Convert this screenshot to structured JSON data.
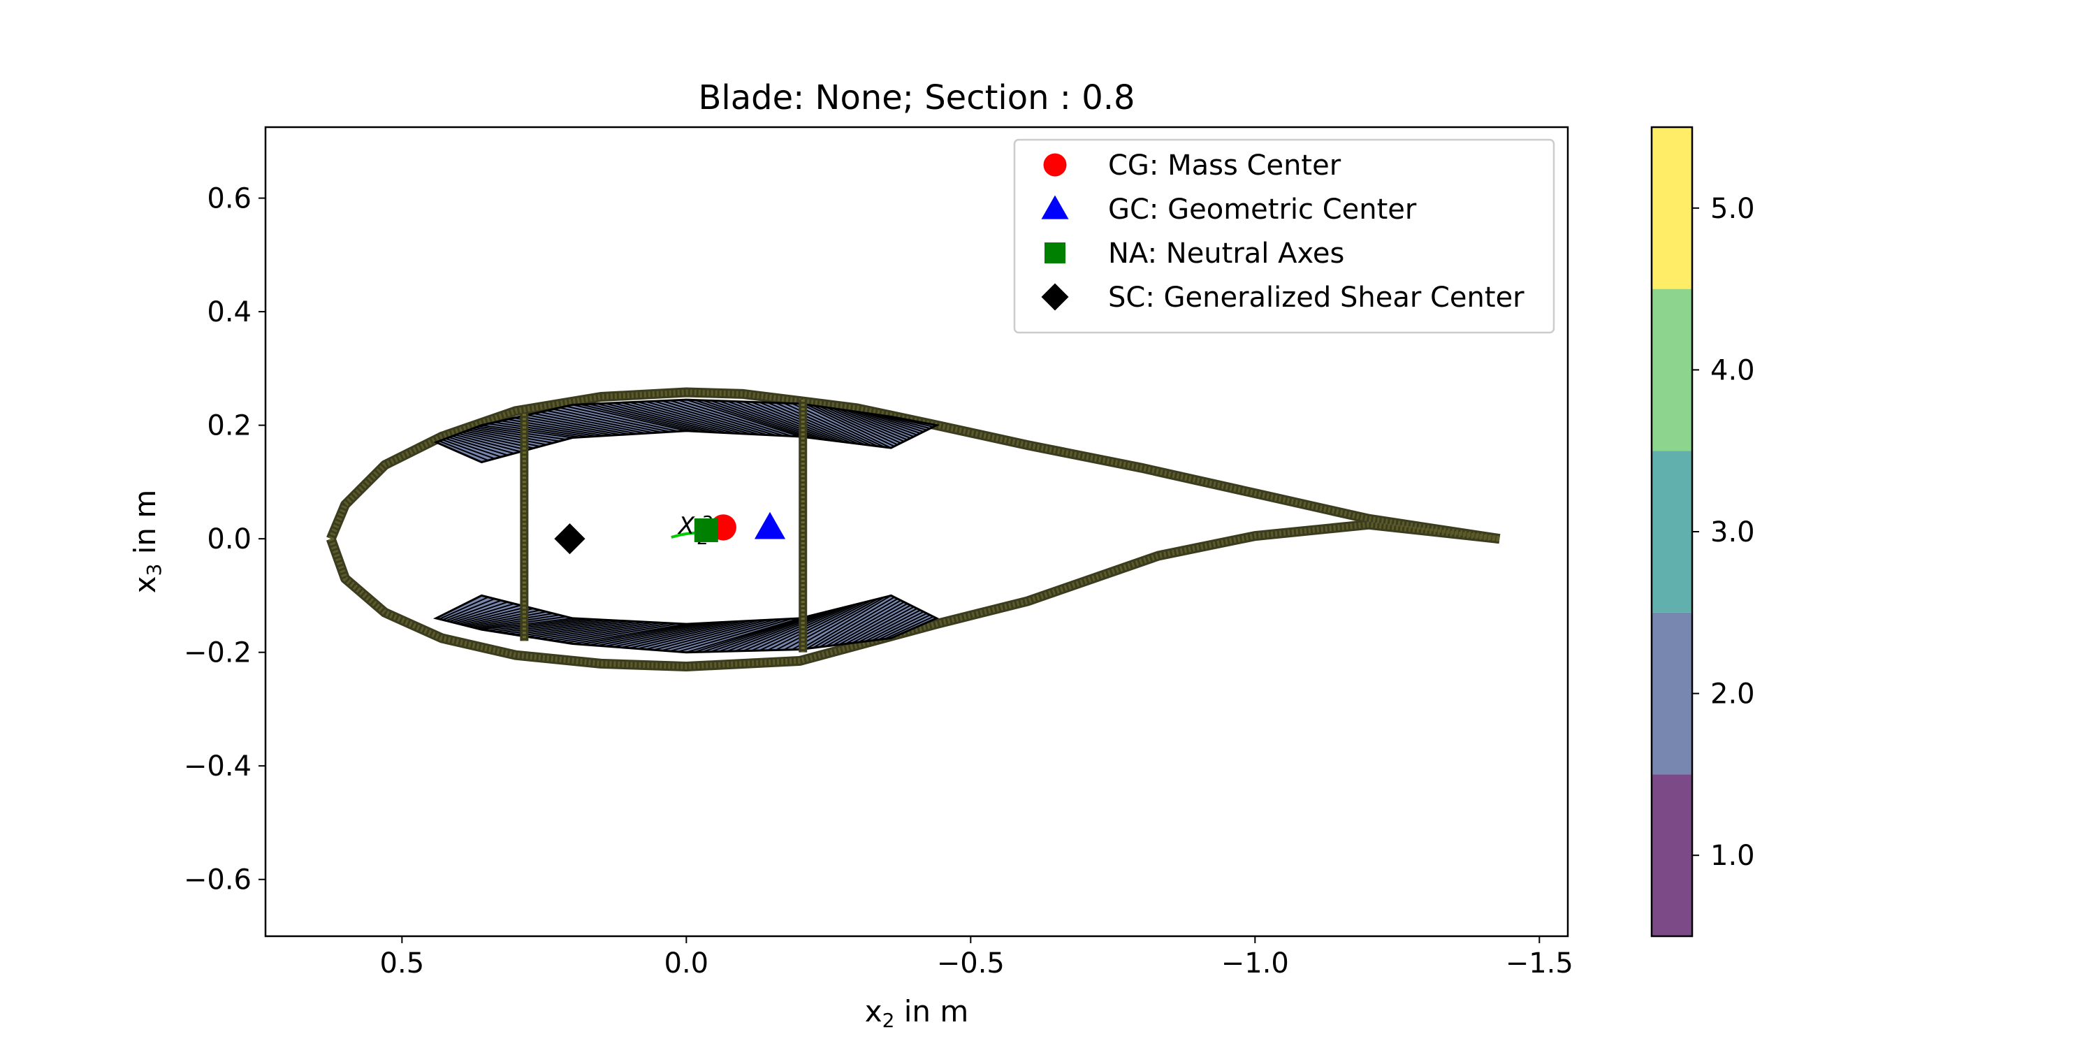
{
  "chart_data": {
    "type": "scatter",
    "title": "Blade: None; Section : 0.8",
    "xlabel": "x₂ in m",
    "ylabel": "x₃ in m",
    "xlabel_parts": {
      "var": "x",
      "sub": "2",
      "unit": "in m"
    },
    "ylabel_parts": {
      "var": "x",
      "sub": "3",
      "unit": "in m"
    },
    "xlim": [
      0.74,
      -1.55
    ],
    "ylim": [
      -0.7,
      0.725
    ],
    "x_ticks": [
      0.5,
      0.0,
      -0.5,
      -1.0,
      -1.5
    ],
    "x_tick_labels": [
      "0.5",
      "0.0",
      "−0.5",
      "−1.0",
      "−1.5"
    ],
    "y_ticks": [
      0.6,
      0.4,
      0.2,
      0.0,
      -0.2,
      -0.4,
      -0.6
    ],
    "y_tick_labels": [
      "0.6",
      "0.4",
      "0.2",
      "0.0",
      "−0.2",
      "−0.4",
      "−0.6"
    ],
    "grid": false,
    "legend_position": "top-right",
    "points": [
      {
        "label": "CG: Mass Center",
        "x": -0.065,
        "y": 0.02,
        "marker": "circle",
        "color": "#ff0000"
      },
      {
        "label": "GC: Geometric Center",
        "x": -0.147,
        "y": 0.02,
        "marker": "triangle",
        "color": "#0000ff"
      },
      {
        "label": "NA: Neutral Axes",
        "x": -0.035,
        "y": 0.015,
        "marker": "square",
        "color": "#008000"
      },
      {
        "label": "SC: Generalized Shear Center",
        "x": 0.205,
        "y": 0.0,
        "marker": "diamond",
        "color": "#000000"
      }
    ],
    "principal_axes_labels": [
      "X",
      "2",
      "3"
    ],
    "colorbar": {
      "ticks": [
        1.0,
        2.0,
        3.0,
        4.0,
        5.0
      ],
      "tick_labels": [
        "1.0",
        "2.0",
        "3.0",
        "4.0",
        "5.0"
      ],
      "range": [
        0.5,
        5.5
      ],
      "colors": [
        "#7b4a87",
        "#7787b0",
        "#62b0ad",
        "#8dd58e",
        "#ffec67"
      ]
    },
    "section_geometry": {
      "upper_surface": [
        [
          -1.43,
          0.0
        ],
        [
          -1.2,
          0.035
        ],
        [
          -1.0,
          0.08
        ],
        [
          -0.8,
          0.125
        ],
        [
          -0.6,
          0.165
        ],
        [
          -0.44,
          0.2
        ],
        [
          -0.3,
          0.23
        ],
        [
          -0.1,
          0.255
        ],
        [
          0.0,
          0.258
        ],
        [
          0.15,
          0.25
        ],
        [
          0.3,
          0.225
        ],
        [
          0.43,
          0.18
        ],
        [
          0.53,
          0.13
        ],
        [
          0.6,
          0.06
        ],
        [
          0.625,
          0.0
        ]
      ],
      "lower_surface": [
        [
          0.625,
          0.0
        ],
        [
          0.6,
          -0.07
        ],
        [
          0.53,
          -0.13
        ],
        [
          0.43,
          -0.175
        ],
        [
          0.3,
          -0.205
        ],
        [
          0.15,
          -0.22
        ],
        [
          0.0,
          -0.225
        ],
        [
          -0.2,
          -0.215
        ],
        [
          -0.44,
          -0.15
        ],
        [
          -0.6,
          -0.11
        ],
        [
          -0.83,
          -0.03
        ],
        [
          -1.0,
          0.005
        ],
        [
          -1.2,
          0.025
        ],
        [
          -1.43,
          0.0
        ]
      ],
      "upper_spar_cap": [
        [
          0.44,
          0.17
        ],
        [
          0.36,
          0.2
        ],
        [
          0.2,
          0.236
        ],
        [
          0.0,
          0.245
        ],
        [
          -0.2,
          0.238
        ],
        [
          -0.36,
          0.215
        ],
        [
          -0.44,
          0.2
        ],
        [
          -0.36,
          0.16
        ],
        [
          -0.2,
          0.18
        ],
        [
          0.0,
          0.19
        ],
        [
          0.2,
          0.178
        ],
        [
          0.36,
          0.135
        ]
      ],
      "lower_spar_cap": [
        [
          0.44,
          -0.14
        ],
        [
          0.36,
          -0.16
        ],
        [
          0.2,
          -0.185
        ],
        [
          0.0,
          -0.2
        ],
        [
          -0.2,
          -0.195
        ],
        [
          -0.36,
          -0.175
        ],
        [
          -0.44,
          -0.14
        ],
        [
          -0.36,
          -0.1
        ],
        [
          -0.2,
          -0.14
        ],
        [
          0.0,
          -0.15
        ],
        [
          0.2,
          -0.14
        ],
        [
          0.36,
          -0.1
        ]
      ],
      "shear_webs": [
        {
          "x": 0.285,
          "y_top": 0.22,
          "y_bottom": -0.18
        },
        {
          "x": -0.205,
          "y_top": 0.245,
          "y_bottom": -0.2
        }
      ]
    }
  }
}
